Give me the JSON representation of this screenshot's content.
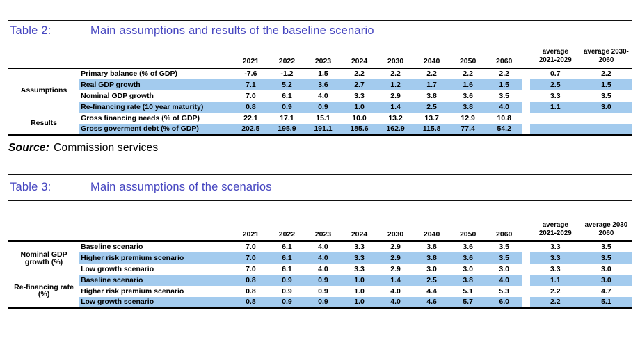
{
  "colors": {
    "hl": "#A3CBEE",
    "title": "#4545C0"
  },
  "source": {
    "label": "Source:",
    "text": "Commission services"
  },
  "table2": {
    "caption_label": "Table 2:",
    "caption_title": "Main assumptions and results of the baseline scenario",
    "col_headers": [
      "2021",
      "2022",
      "2023",
      "2024",
      "2030",
      "2040",
      "2050",
      "2060"
    ],
    "avg_headers": [
      [
        "average",
        "2021-2029"
      ],
      [
        "average 2030-",
        "2060"
      ]
    ],
    "groups": [
      {
        "label": "Assumptions",
        "rows": [
          0,
          1,
          2,
          3
        ]
      },
      {
        "label": "Results",
        "rows": [
          4,
          5
        ]
      }
    ],
    "rows": [
      {
        "label": "Primary balance (% of GDP)",
        "values": [
          "-7.6",
          "-1.2",
          "1.5",
          "2.2",
          "2.2",
          "2.2",
          "2.2",
          "2.2"
        ],
        "avg": [
          "0.7",
          "2.2"
        ],
        "highlight": false
      },
      {
        "label": "Real GDP growth",
        "values": [
          "7.1",
          "5.2",
          "3.6",
          "2.7",
          "1.2",
          "1.7",
          "1.6",
          "1.5"
        ],
        "avg": [
          "2.5",
          "1.5"
        ],
        "highlight": true
      },
      {
        "label": "Nominal GDP growth",
        "values": [
          "7.0",
          "6.1",
          "4.0",
          "3.3",
          "2.9",
          "3.8",
          "3.6",
          "3.5"
        ],
        "avg": [
          "3.3",
          "3.5"
        ],
        "highlight": false
      },
      {
        "label": "Re-financing rate (10 year maturity)",
        "values": [
          "0.8",
          "0.9",
          "0.9",
          "1.0",
          "1.4",
          "2.5",
          "3.8",
          "4.0"
        ],
        "avg": [
          "1.1",
          "3.0"
        ],
        "highlight": true
      },
      {
        "label": "Gross financing needs (% of GDP)",
        "values": [
          "22.1",
          "17.1",
          "15.1",
          "10.0",
          "13.2",
          "13.7",
          "12.9",
          "10.8"
        ],
        "avg": [
          "",
          ""
        ],
        "highlight": false
      },
      {
        "label": "Gross goverment debt (% of GDP)",
        "values": [
          "202.5",
          "195.9",
          "191.1",
          "185.6",
          "162.9",
          "115.8",
          "77.4",
          "54.2"
        ],
        "avg": [
          "",
          ""
        ],
        "highlight": true
      }
    ]
  },
  "table3": {
    "caption_label": "Table 3:",
    "caption_title": "Main assumptions of the scenarios",
    "col_headers": [
      "2021",
      "2022",
      "2023",
      "2024",
      "2030",
      "2040",
      "2050",
      "2060"
    ],
    "avg_headers": [
      [
        "average",
        "2021-2029"
      ],
      [
        "average 2030",
        "2060"
      ]
    ],
    "groups": [
      {
        "label": "Nominal GDP growth (%)",
        "rows": [
          0,
          1,
          2
        ]
      },
      {
        "label": "Re-financing rate (%)",
        "rows": [
          3,
          4,
          5
        ]
      }
    ],
    "rows": [
      {
        "label": "Baseline scenario",
        "values": [
          "7.0",
          "6.1",
          "4.0",
          "3.3",
          "2.9",
          "3.8",
          "3.6",
          "3.5"
        ],
        "avg": [
          "3.3",
          "3.5"
        ],
        "highlight": false
      },
      {
        "label": "Higher risk premium scenario",
        "values": [
          "7.0",
          "6.1",
          "4.0",
          "3.3",
          "2.9",
          "3.8",
          "3.6",
          "3.5"
        ],
        "avg": [
          "3.3",
          "3.5"
        ],
        "highlight": true
      },
      {
        "label": "Low growth scenario",
        "values": [
          "7.0",
          "6.1",
          "4.0",
          "3.3",
          "2.9",
          "3.0",
          "3.0",
          "3.0"
        ],
        "avg": [
          "3.3",
          "3.0"
        ],
        "highlight": false
      },
      {
        "label": "Baseline scenario",
        "values": [
          "0.8",
          "0.9",
          "0.9",
          "1.0",
          "1.4",
          "2.5",
          "3.8",
          "4.0"
        ],
        "avg": [
          "1.1",
          "3.0"
        ],
        "highlight": true
      },
      {
        "label": "Higher risk premium scenario",
        "values": [
          "0.8",
          "0.9",
          "0.9",
          "1.0",
          "4.0",
          "4.4",
          "5.1",
          "5.3"
        ],
        "avg": [
          "2.2",
          "4.7"
        ],
        "highlight": false
      },
      {
        "label": "Low growth scenario",
        "values": [
          "0.8",
          "0.9",
          "0.9",
          "1.0",
          "4.0",
          "4.6",
          "5.7",
          "6.0"
        ],
        "avg": [
          "2.2",
          "5.1"
        ],
        "highlight": true
      }
    ]
  }
}
